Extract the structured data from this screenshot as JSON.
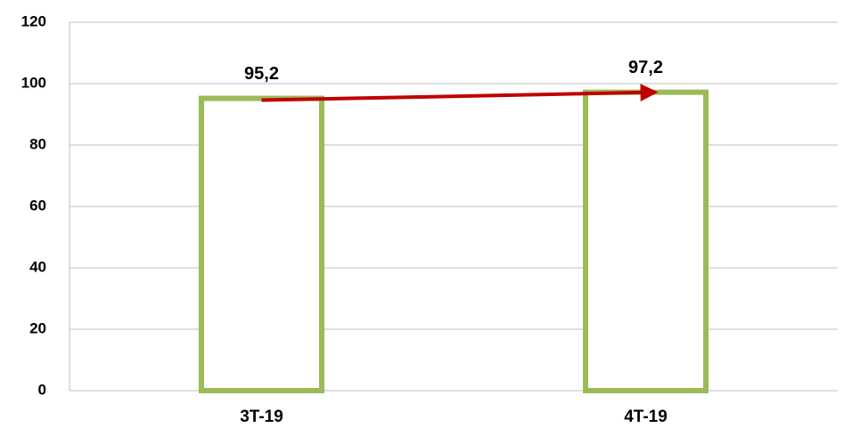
{
  "chart_data": {
    "type": "bar",
    "categories": [
      "3T-19",
      "4T-19"
    ],
    "values": [
      95.2,
      97.2
    ],
    "value_labels": [
      "95,2",
      "97,2"
    ],
    "color": "#9bbb59",
    "ylim": [
      0,
      120
    ],
    "yticks": [
      0,
      20,
      40,
      60,
      80,
      100,
      120
    ],
    "grid": true
  }
}
